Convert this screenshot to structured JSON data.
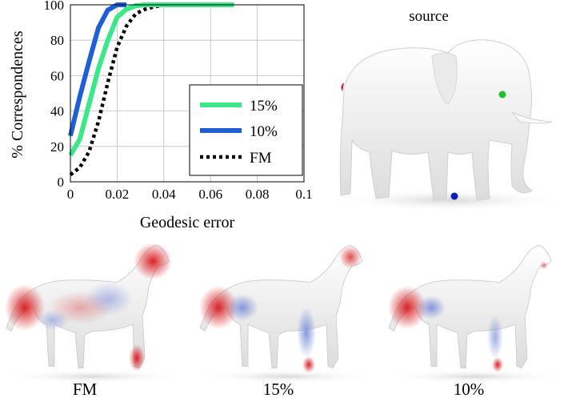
{
  "chart_data": {
    "type": "line",
    "xlabel": "Geodesic error",
    "ylabel": "% Correspondences",
    "xlim": [
      0,
      0.1
    ],
    "ylim": [
      0,
      100
    ],
    "x_ticks": [
      "0",
      "0.02",
      "0.04",
      "0.06",
      "0.08",
      "0.1"
    ],
    "y_ticks": [
      "0",
      "20",
      "40",
      "60",
      "80",
      "100"
    ],
    "grid": true,
    "legend": "right",
    "series": [
      {
        "name": "15%",
        "color": "#39e887",
        "style": "solid",
        "x": [
          0,
          0.004,
          0.008,
          0.012,
          0.016,
          0.02,
          0.024,
          0.028,
          0.032,
          0.04,
          0.05,
          0.07
        ],
        "y": [
          15,
          24,
          44,
          64,
          80,
          93,
          97.5,
          99.5,
          100,
          100,
          100,
          100
        ]
      },
      {
        "name": "10%",
        "color": "#1f5fd6",
        "style": "solid",
        "x": [
          0,
          0.004,
          0.008,
          0.012,
          0.016,
          0.02,
          0.024
        ],
        "y": [
          26,
          48,
          68,
          87,
          97,
          100,
          100
        ]
      },
      {
        "name": "FM",
        "color": "#000000",
        "style": "dotted",
        "x": [
          0,
          0.004,
          0.008,
          0.012,
          0.016,
          0.02,
          0.024,
          0.028,
          0.032,
          0.036,
          0.04,
          0.045,
          0.05,
          0.07
        ],
        "y": [
          4,
          8,
          17,
          34,
          56,
          76,
          88,
          95,
          97.5,
          99,
          99.7,
          100,
          100,
          100
        ]
      }
    ]
  },
  "panel": {
    "source_label": "source",
    "captions": [
      "FM",
      "15%",
      "10%"
    ]
  },
  "colors": {
    "mesh_white": "#f0f0f0",
    "error_red": "#d7191c",
    "error_blue": "#6a7fd6",
    "marker_green": "#22c02e",
    "marker_blue": "#1020c0"
  }
}
